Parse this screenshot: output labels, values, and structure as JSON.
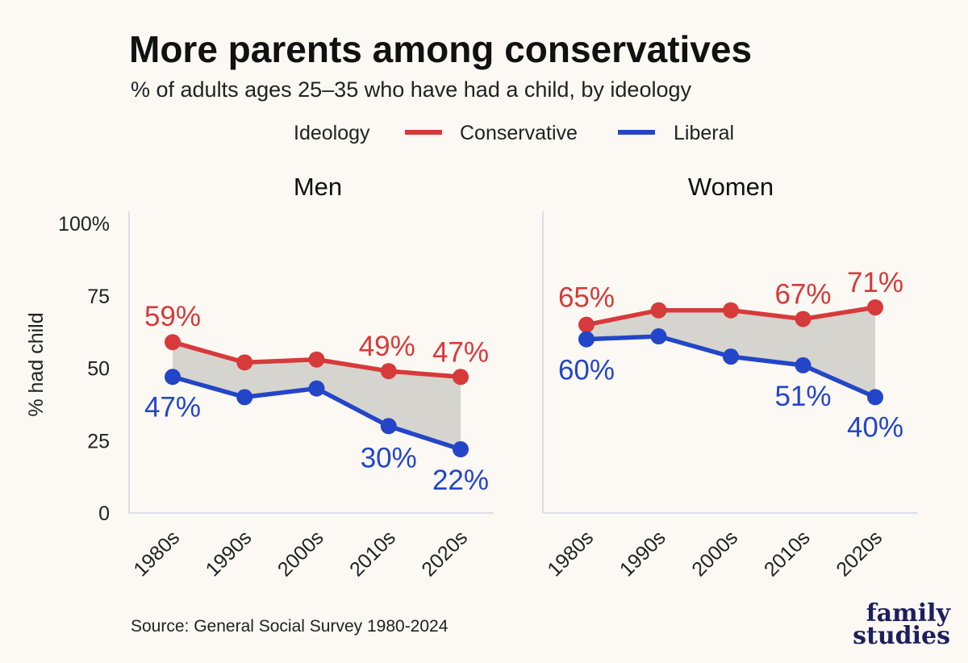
{
  "title": "More parents among conservatives",
  "subtitle": "% of adults ages 25–35 who have had a child, by ideology",
  "legend": {
    "title": "Ideology",
    "items": [
      {
        "label": "Conservative",
        "color": "#d63a3a"
      },
      {
        "label": "Liberal",
        "color": "#2346c8"
      }
    ]
  },
  "source": "Source: General Social Survey 1980-2024",
  "brand": {
    "line1": "family",
    "line2": "studies"
  },
  "chart_data": {
    "type": "line",
    "ylabel": "% had child",
    "ylim": [
      0,
      100
    ],
    "yticks": [
      0,
      25,
      50,
      75,
      100
    ],
    "ytick_labels": [
      "0",
      "25",
      "50",
      "75",
      "100%"
    ],
    "categories": [
      "1980s",
      "1990s",
      "2000s",
      "2010s",
      "2020s"
    ],
    "fill_between_series": true,
    "grid": false,
    "panels": [
      {
        "title": "Men",
        "series": [
          {
            "name": "Conservative",
            "color": "#d63a3a",
            "values": [
              59,
              52,
              53,
              49,
              47
            ],
            "labels": [
              "59%",
              "",
              "",
              "49%",
              "47%"
            ]
          },
          {
            "name": "Liberal",
            "color": "#2346c8",
            "values": [
              47,
              40,
              43,
              30,
              22
            ],
            "labels": [
              "47%",
              "",
              "",
              "30%",
              "22%"
            ]
          }
        ]
      },
      {
        "title": "Women",
        "series": [
          {
            "name": "Conservative",
            "color": "#d63a3a",
            "values": [
              65,
              70,
              70,
              67,
              71
            ],
            "labels": [
              "65%",
              "",
              "",
              "67%",
              "71%"
            ]
          },
          {
            "name": "Liberal",
            "color": "#2346c8",
            "values": [
              60,
              61,
              54,
              51,
              40
            ],
            "labels": [
              "60%",
              "",
              "",
              "51%",
              "40%"
            ]
          }
        ]
      }
    ]
  }
}
